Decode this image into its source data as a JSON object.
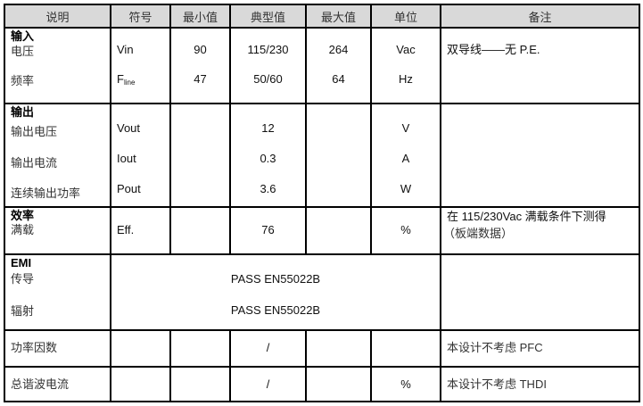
{
  "headers": [
    "说明",
    "符号",
    "最小值",
    "典型值",
    "最大值",
    "单位",
    "备注"
  ],
  "input": {
    "title": "输入",
    "voltage": {
      "label": "电压",
      "symbol": "Vin",
      "min": "90",
      "typ": "115/230",
      "max": "264",
      "unit": "Vac",
      "note": "双导线——无 P.E."
    },
    "frequency": {
      "label": "频率",
      "symbol": "F",
      "symbol_sub": "line",
      "min": "47",
      "typ": "50/60",
      "max": "64",
      "unit": "Hz"
    }
  },
  "output": {
    "title": "输出",
    "voltage": {
      "label": "输出电压",
      "symbol": "Vout",
      "typ": "12",
      "unit": "V"
    },
    "current": {
      "label": "输出电流",
      "symbol": "Iout",
      "typ": "0.3",
      "unit": "A"
    },
    "power": {
      "label": "连续输出功率",
      "symbol": "Pout",
      "typ": "3.6",
      "unit": "W"
    }
  },
  "efficiency": {
    "title": "效率",
    "full_load": {
      "label": "满载",
      "symbol": "Eff.",
      "typ": "76",
      "unit": "%",
      "note_line1": "在 115/230Vac 满载条件下测得",
      "note_line2": "（板端数据）"
    }
  },
  "emi": {
    "title": "EMI",
    "conducted": {
      "label": "传导",
      "value": "PASS EN55022B"
    },
    "radiated": {
      "label": "辐射",
      "value": "PASS EN55022B"
    }
  },
  "power_factor": {
    "label": "功率因数",
    "typ": "/",
    "note": "本设计不考虑 PFC"
  },
  "thd": {
    "label": "总谐波电流",
    "typ": "/",
    "unit": "%",
    "note": "本设计不考虑 THDI"
  }
}
